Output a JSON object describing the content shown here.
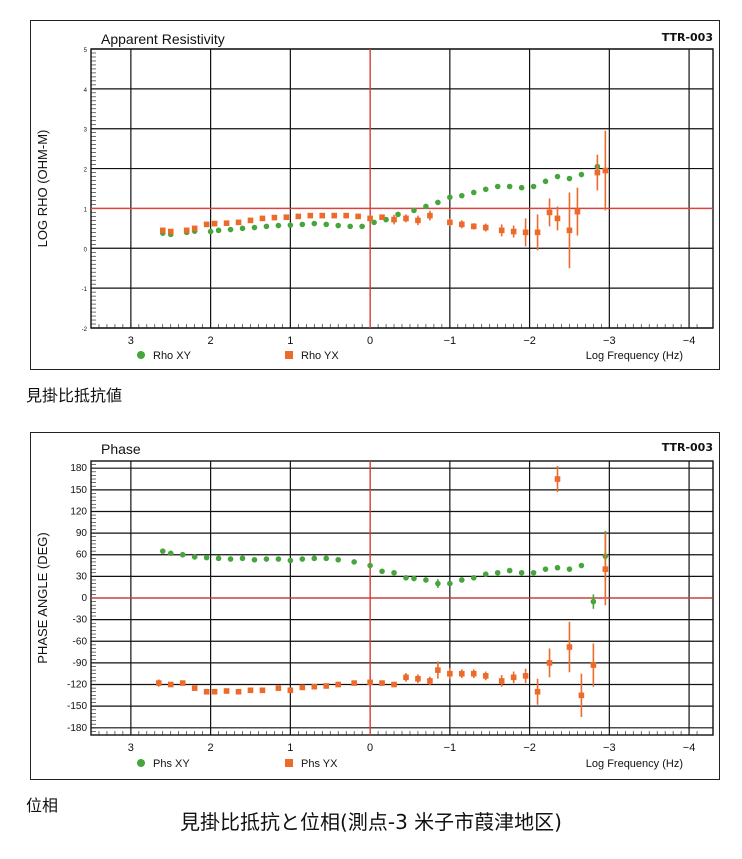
{
  "captions": {
    "resistivity": "見掛比抵抗値",
    "phase": "位相",
    "figure": "見掛比抵抗と位相(測点-3 米子市葭津地区)"
  },
  "chart_data": [
    {
      "type": "scatter",
      "title": "Apparent Resistivity",
      "tag": "TTR-003",
      "ylabel": "LOG RHO (OHM-M)",
      "xlabel": "Log Frequency (Hz)",
      "xlim": [
        3.5,
        -4.3
      ],
      "ylim": [
        -2,
        5
      ],
      "xticks": [
        3,
        2,
        1,
        0,
        -1,
        -2,
        -3,
        -4
      ],
      "xtick_labels": [
        "3",
        "2",
        "1",
        "0",
        "−1",
        "−2",
        "−3",
        "−4"
      ],
      "yticks": [
        -2,
        -1,
        0,
        1,
        2,
        3,
        4,
        5
      ],
      "ytick_labels": [
        "-2",
        "-1",
        "0",
        "1",
        "2",
        "3",
        "4",
        "5"
      ],
      "reference_lines": {
        "x": 0,
        "y": 1,
        "color": "#e2403a"
      },
      "grid": true,
      "legend_position": "bottom",
      "series": [
        {
          "name": "Rho XY",
          "marker": "circle",
          "color": "#46a53c",
          "points": [
            {
              "x": 2.6,
              "y": 0.38
            },
            {
              "x": 2.5,
              "y": 0.35
            },
            {
              "x": 2.3,
              "y": 0.4
            },
            {
              "x": 2.2,
              "y": 0.43
            },
            {
              "x": 2.0,
              "y": 0.42
            },
            {
              "x": 1.9,
              "y": 0.45
            },
            {
              "x": 1.75,
              "y": 0.47
            },
            {
              "x": 1.6,
              "y": 0.5
            },
            {
              "x": 1.45,
              "y": 0.52
            },
            {
              "x": 1.3,
              "y": 0.55
            },
            {
              "x": 1.15,
              "y": 0.57
            },
            {
              "x": 1.0,
              "y": 0.58
            },
            {
              "x": 0.85,
              "y": 0.6
            },
            {
              "x": 0.7,
              "y": 0.62
            },
            {
              "x": 0.55,
              "y": 0.6
            },
            {
              "x": 0.4,
              "y": 0.57
            },
            {
              "x": 0.25,
              "y": 0.55
            },
            {
              "x": 0.1,
              "y": 0.55
            },
            {
              "x": -0.05,
              "y": 0.65
            },
            {
              "x": -0.2,
              "y": 0.72
            },
            {
              "x": -0.35,
              "y": 0.85
            },
            {
              "x": -0.55,
              "y": 0.95
            },
            {
              "x": -0.7,
              "y": 1.05
            },
            {
              "x": -0.85,
              "y": 1.15
            },
            {
              "x": -1.0,
              "y": 1.28
            },
            {
              "x": -1.15,
              "y": 1.32
            },
            {
              "x": -1.3,
              "y": 1.4
            },
            {
              "x": -1.45,
              "y": 1.48
            },
            {
              "x": -1.6,
              "y": 1.55
            },
            {
              "x": -1.75,
              "y": 1.55
            },
            {
              "x": -1.9,
              "y": 1.52
            },
            {
              "x": -2.05,
              "y": 1.55
            },
            {
              "x": -2.2,
              "y": 1.68
            },
            {
              "x": -2.35,
              "y": 1.8
            },
            {
              "x": -2.5,
              "y": 1.75
            },
            {
              "x": -2.65,
              "y": 1.85
            },
            {
              "x": -2.85,
              "y": 2.05
            }
          ]
        },
        {
          "name": "Rho YX",
          "marker": "square",
          "color": "#ec6a2a",
          "points": [
            {
              "x": 2.6,
              "y": 0.45
            },
            {
              "x": 2.5,
              "y": 0.42
            },
            {
              "x": 2.3,
              "y": 0.45
            },
            {
              "x": 2.2,
              "y": 0.5
            },
            {
              "x": 2.05,
              "y": 0.6
            },
            {
              "x": 1.95,
              "y": 0.62
            },
            {
              "x": 1.8,
              "y": 0.63
            },
            {
              "x": 1.65,
              "y": 0.65
            },
            {
              "x": 1.5,
              "y": 0.7
            },
            {
              "x": 1.35,
              "y": 0.75
            },
            {
              "x": 1.2,
              "y": 0.77
            },
            {
              "x": 1.05,
              "y": 0.78
            },
            {
              "x": 0.9,
              "y": 0.8
            },
            {
              "x": 0.75,
              "y": 0.82
            },
            {
              "x": 0.6,
              "y": 0.82
            },
            {
              "x": 0.45,
              "y": 0.82
            },
            {
              "x": 0.3,
              "y": 0.82
            },
            {
              "x": 0.15,
              "y": 0.8
            },
            {
              "x": 0.0,
              "y": 0.75
            },
            {
              "x": -0.15,
              "y": 0.78
            },
            {
              "x": -0.3,
              "y": 0.72,
              "err": 0.12
            },
            {
              "x": -0.45,
              "y": 0.75,
              "err": 0.1
            },
            {
              "x": -0.6,
              "y": 0.7,
              "err": 0.12
            },
            {
              "x": -0.75,
              "y": 0.82,
              "err": 0.12
            },
            {
              "x": -1.0,
              "y": 0.65,
              "err": 0.1
            },
            {
              "x": -1.15,
              "y": 0.6,
              "err": 0.1
            },
            {
              "x": -1.3,
              "y": 0.55,
              "err": 0.08
            },
            {
              "x": -1.45,
              "y": 0.52,
              "err": 0.1
            },
            {
              "x": -1.65,
              "y": 0.45,
              "err": 0.15
            },
            {
              "x": -1.8,
              "y": 0.42,
              "err": 0.15
            },
            {
              "x": -1.95,
              "y": 0.4,
              "err": 0.35
            },
            {
              "x": -2.1,
              "y": 0.4,
              "err": 0.45
            },
            {
              "x": -2.25,
              "y": 0.9,
              "err": 0.35
            },
            {
              "x": -2.35,
              "y": 0.75,
              "err": 0.3
            },
            {
              "x": -2.5,
              "y": 0.45,
              "err": 0.95
            },
            {
              "x": -2.6,
              "y": 0.92,
              "err": 0.6
            },
            {
              "x": -2.85,
              "y": 1.9,
              "err": 0.45
            },
            {
              "x": -2.95,
              "y": 1.95,
              "err": 1.0
            }
          ]
        }
      ]
    },
    {
      "type": "scatter",
      "title": "Phase",
      "tag": "TTR-003",
      "ylabel": "PHASE ANGLE (DEG)",
      "xlabel": "Log Frequency (Hz)",
      "xlim": [
        3.5,
        -4.3
      ],
      "ylim": [
        -190,
        190
      ],
      "xticks": [
        3,
        2,
        1,
        0,
        -1,
        -2,
        -3,
        -4
      ],
      "xtick_labels": [
        "3",
        "2",
        "1",
        "0",
        "−1",
        "−2",
        "−3",
        "−4"
      ],
      "yticks": [
        -180,
        -150,
        -120,
        -90,
        -60,
        -30,
        0,
        30,
        60,
        90,
        120,
        150,
        180
      ],
      "ytick_labels": [
        "-180",
        "-150",
        "-120",
        "-90",
        "-60",
        "-30",
        "0",
        "30",
        "60",
        "90",
        "120",
        "150",
        "180"
      ],
      "reference_lines": {
        "x": 0,
        "y": 0,
        "color": "#e2403a"
      },
      "grid": true,
      "legend_position": "bottom",
      "series": [
        {
          "name": "Phs XY",
          "marker": "circle",
          "color": "#46a53c",
          "points": [
            {
              "x": 2.6,
              "y": 65
            },
            {
              "x": 2.5,
              "y": 62
            },
            {
              "x": 2.35,
              "y": 60
            },
            {
              "x": 2.2,
              "y": 57
            },
            {
              "x": 2.05,
              "y": 56
            },
            {
              "x": 1.9,
              "y": 55
            },
            {
              "x": 1.75,
              "y": 54
            },
            {
              "x": 1.6,
              "y": 55
            },
            {
              "x": 1.45,
              "y": 53
            },
            {
              "x": 1.3,
              "y": 54
            },
            {
              "x": 1.15,
              "y": 54
            },
            {
              "x": 1.0,
              "y": 52
            },
            {
              "x": 0.85,
              "y": 54
            },
            {
              "x": 0.7,
              "y": 55
            },
            {
              "x": 0.55,
              "y": 55
            },
            {
              "x": 0.4,
              "y": 53
            },
            {
              "x": 0.2,
              "y": 50
            },
            {
              "x": 0.0,
              "y": 45
            },
            {
              "x": -0.15,
              "y": 37
            },
            {
              "x": -0.3,
              "y": 35
            },
            {
              "x": -0.45,
              "y": 28
            },
            {
              "x": -0.55,
              "y": 27
            },
            {
              "x": -0.7,
              "y": 25
            },
            {
              "x": -0.85,
              "y": 20,
              "err": 6
            },
            {
              "x": -1.0,
              "y": 20
            },
            {
              "x": -1.15,
              "y": 25
            },
            {
              "x": -1.3,
              "y": 28
            },
            {
              "x": -1.45,
              "y": 33
            },
            {
              "x": -1.6,
              "y": 35
            },
            {
              "x": -1.75,
              "y": 38
            },
            {
              "x": -1.9,
              "y": 35
            },
            {
              "x": -2.05,
              "y": 35
            },
            {
              "x": -2.2,
              "y": 40
            },
            {
              "x": -2.35,
              "y": 42
            },
            {
              "x": -2.5,
              "y": 40
            },
            {
              "x": -2.65,
              "y": 45
            },
            {
              "x": -2.8,
              "y": -5,
              "err": 10
            },
            {
              "x": -2.95,
              "y": 58,
              "err": 35
            }
          ]
        },
        {
          "name": "Phs YX",
          "marker": "square",
          "color": "#ec6a2a",
          "points": [
            {
              "x": 2.65,
              "y": -118,
              "err": 5
            },
            {
              "x": 2.5,
              "y": -120
            },
            {
              "x": 2.35,
              "y": -118
            },
            {
              "x": 2.2,
              "y": -125
            },
            {
              "x": 2.05,
              "y": -130
            },
            {
              "x": 1.95,
              "y": -130
            },
            {
              "x": 1.8,
              "y": -129
            },
            {
              "x": 1.65,
              "y": -130
            },
            {
              "x": 1.5,
              "y": -128
            },
            {
              "x": 1.35,
              "y": -128
            },
            {
              "x": 1.15,
              "y": -125
            },
            {
              "x": 1.0,
              "y": -128
            },
            {
              "x": 0.85,
              "y": -124
            },
            {
              "x": 0.7,
              "y": -123
            },
            {
              "x": 0.55,
              "y": -122
            },
            {
              "x": 0.4,
              "y": -120
            },
            {
              "x": 0.2,
              "y": -118
            },
            {
              "x": 0.0,
              "y": -117
            },
            {
              "x": -0.15,
              "y": -118
            },
            {
              "x": -0.3,
              "y": -120
            },
            {
              "x": -0.45,
              "y": -110,
              "err": 6
            },
            {
              "x": -0.6,
              "y": -112,
              "err": 6
            },
            {
              "x": -0.75,
              "y": -115,
              "err": 6
            },
            {
              "x": -0.85,
              "y": -100,
              "err": 12
            },
            {
              "x": -1.0,
              "y": -105,
              "err": 8
            },
            {
              "x": -1.15,
              "y": -105,
              "err": 6
            },
            {
              "x": -1.3,
              "y": -105,
              "err": 6
            },
            {
              "x": -1.45,
              "y": -108,
              "err": 6
            },
            {
              "x": -1.65,
              "y": -115,
              "err": 8
            },
            {
              "x": -1.8,
              "y": -110,
              "err": 8
            },
            {
              "x": -1.95,
              "y": -108,
              "err": 10
            },
            {
              "x": -2.1,
              "y": -130,
              "err": 18
            },
            {
              "x": -2.25,
              "y": -90,
              "err": 20
            },
            {
              "x": -2.35,
              "y": 165,
              "err": 18
            },
            {
              "x": -2.5,
              "y": -68,
              "err": 35
            },
            {
              "x": -2.65,
              "y": -135,
              "err": 30
            },
            {
              "x": -2.8,
              "y": -93,
              "err": 30
            },
            {
              "x": -2.95,
              "y": 40,
              "err": 50
            }
          ]
        }
      ]
    }
  ]
}
